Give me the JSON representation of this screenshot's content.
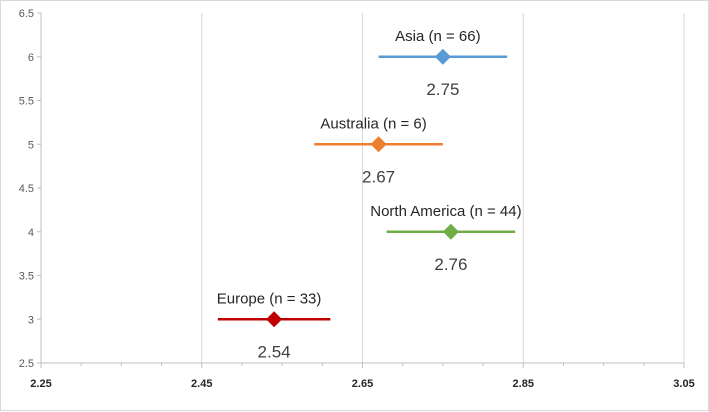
{
  "chart_data": {
    "type": "scatter",
    "title": "",
    "xlabel": "",
    "ylabel": "",
    "xlim": [
      2.25,
      3.05
    ],
    "ylim": [
      2.5,
      6.5
    ],
    "x_ticks": [
      "2.25",
      "2.45",
      "2.65",
      "2.85",
      "3.05"
    ],
    "y_ticks": [
      "2.5",
      "3",
      "3.5",
      "4",
      "4.5",
      "5",
      "5.5",
      "6",
      "6.5"
    ],
    "grid": {
      "vertical": true,
      "horizontal": false
    },
    "marker": "diamond",
    "series": [
      {
        "name": "Asia (n = 66)",
        "x": 2.75,
        "y": 6,
        "error_low": 2.67,
        "error_high": 2.83,
        "value_label": "2.75",
        "color": "#5b9bd5"
      },
      {
        "name": "Australia (n = 6)",
        "x": 2.67,
        "y": 5,
        "error_low": 2.59,
        "error_high": 2.75,
        "value_label": "2.67",
        "color": "#ed7d31"
      },
      {
        "name": "North America (n = 44)",
        "x": 2.76,
        "y": 4,
        "error_low": 2.68,
        "error_high": 2.84,
        "value_label": "2.76",
        "color": "#70ad47"
      },
      {
        "name": "Europe (n = 33)",
        "x": 2.54,
        "y": 3,
        "error_low": 2.47,
        "error_high": 2.61,
        "value_label": "2.54",
        "color": "#c00000"
      }
    ]
  }
}
